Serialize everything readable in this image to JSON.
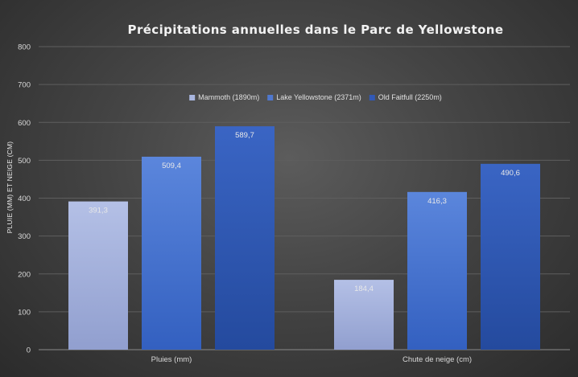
{
  "chart_data": {
    "type": "bar",
    "title": "Précipitations annuelles dans le Parc de Yellowstone",
    "ylabel": "PLUIE (MM) ET NEIGE (CM)",
    "xlabel": "",
    "categories": [
      "Pluies (mm)",
      "Chute de neige (cm)"
    ],
    "series": [
      {
        "name": "Mammoth (1890m)",
        "values": [
          391.3,
          184.4
        ],
        "labels": [
          "391,3",
          "184,4"
        ],
        "color": "#a9b6df"
      },
      {
        "name": "Lake Yellowstone (2371m)",
        "values": [
          509.4,
          416.3
        ],
        "labels": [
          "509,4",
          "416,3"
        ],
        "color": "#4f78cf"
      },
      {
        "name": "Old Faitfull (2250m)",
        "values": [
          589.7,
          490.6
        ],
        "labels": [
          "589,7",
          "490,6"
        ],
        "color": "#3158b5"
      }
    ],
    "ylim": [
      0,
      800
    ],
    "yticks": [
      0,
      100,
      200,
      300,
      400,
      500,
      600,
      700,
      800
    ],
    "grid": true,
    "legend_position": "top-center",
    "data_labels": true
  }
}
